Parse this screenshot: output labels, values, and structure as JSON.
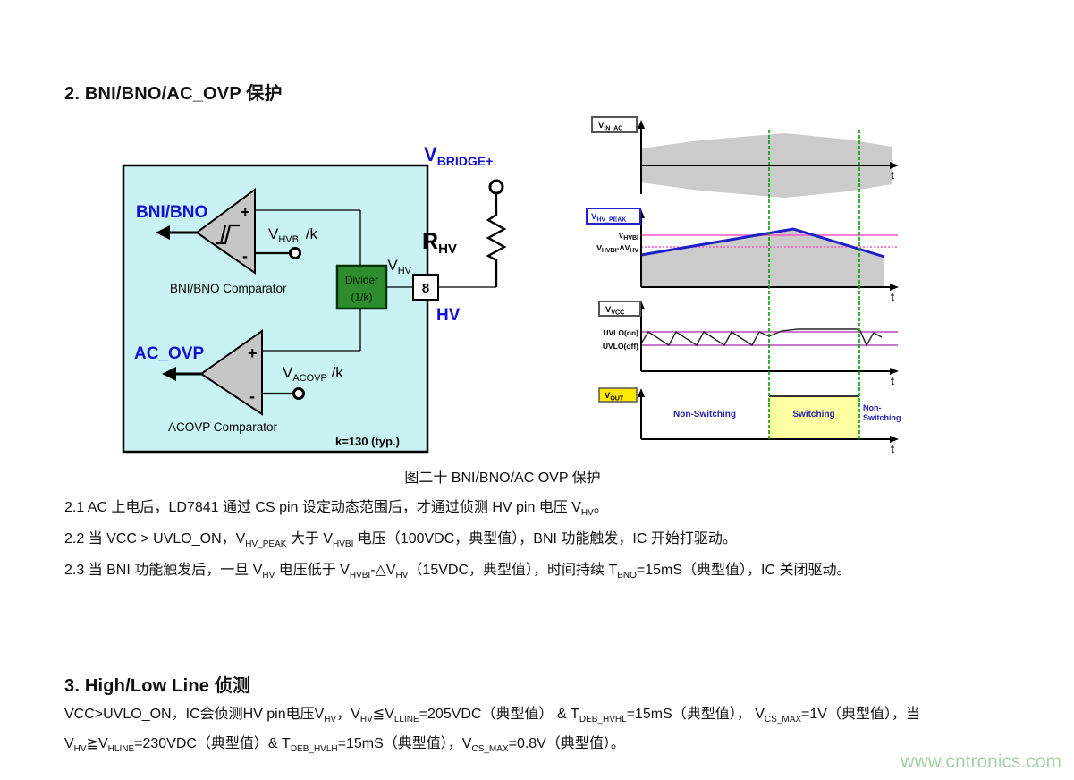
{
  "page": {
    "section2_title": "2. BNI/BNO/AC_OVP 保护",
    "caption": "图二十  BNI/BNO/AC OVP 保护",
    "section3_title": "3.  High/Low Line 侦测",
    "watermark": "www.cntronics.com"
  },
  "circuit": {
    "bni_output": "BNI/BNO",
    "bni_caption": "BNI/BNO Comparator",
    "acovp_output": "AC_OVP",
    "acovp_caption": "ACOVP Comparator",
    "plus": "+",
    "minus": "-",
    "vhvbi": {
      "base": "V",
      "sub": "HVBI",
      "post": " /k"
    },
    "vacovp": {
      "base": "V",
      "sub": "ACOVP",
      "post": " /k"
    },
    "divider_line1": "Divider",
    "divider_line2": "(1/k)",
    "vhv": {
      "base": "V",
      "sub": "HV"
    },
    "pin_number": "8",
    "pin_name": "HV",
    "vbridge": {
      "base": "V",
      "sub": "BRIDGE+"
    },
    "rhv": {
      "base": "R",
      "sub": "HV"
    },
    "k_note": "k=130 (typ.)"
  },
  "waveforms": {
    "panel1": {
      "label": {
        "base": "V",
        "sub": "IN_AC"
      },
      "t": "t"
    },
    "panel2": {
      "label": {
        "base": "V",
        "sub": "HV_PEAK"
      },
      "ref1": {
        "base": "V",
        "sub": "HVBI"
      },
      "ref2": {
        "base": "V",
        "sub": "HVBI",
        "mid": "-ΔV",
        "sub2": "HV"
      },
      "t": "t"
    },
    "panel3": {
      "label": {
        "base": "V",
        "sub": "VCC"
      },
      "uvlo_on": "UVLO(on)",
      "uvlo_off": "UVLO(off)",
      "t": "t"
    },
    "panel4": {
      "label": {
        "base": "V",
        "sub": "OUT"
      },
      "non_switching": "Non-Switching",
      "switching": "Switching",
      "non_line1": "Non-",
      "non_line2": "Switching",
      "t": "t"
    }
  },
  "paragraphs": {
    "p21": [
      [
        "2.1 AC 上电后，LD7841 通过 CS pin 设定动态范围后，才通过侦测 HV pin 电压 V",
        "n"
      ],
      [
        "HV",
        "s"
      ],
      [
        "。",
        "n"
      ]
    ],
    "p22": [
      [
        "2.2 当 VCC > UVLO_ON，V",
        "n"
      ],
      [
        "HV_PEAK",
        "s"
      ],
      [
        " 大于 V",
        "n"
      ],
      [
        "HVBI",
        "s"
      ],
      [
        " 电压（100VDC，典型值），BNI 功能触发，IC 开始打驱动。",
        "n"
      ]
    ],
    "p23": [
      [
        "2.3 当 BNI 功能触发后，一旦 V",
        "n"
      ],
      [
        "HV",
        "s"
      ],
      [
        " 电压低于 V",
        "n"
      ],
      [
        "HVBI",
        "s"
      ],
      [
        "-△V",
        "n"
      ],
      [
        "HV",
        "s"
      ],
      [
        "（15VDC，典型值），时间持续 T",
        "n"
      ],
      [
        "BNO",
        "s"
      ],
      [
        "=15mS（典型值），IC 关闭驱动。",
        "n"
      ]
    ],
    "p3": [
      [
        "VCC>UVLO_ON，IC会侦测HV pin电压V",
        "n"
      ],
      [
        "HV",
        "s"
      ],
      [
        "，V",
        "n"
      ],
      [
        "HV",
        "s"
      ],
      [
        "≦V",
        "n"
      ],
      [
        "LLINE",
        "s"
      ],
      [
        "=205VDC（典型值） & T",
        "n"
      ],
      [
        "DEB_HVHL",
        "s"
      ],
      [
        "=15mS（典型值）， V",
        "n"
      ],
      [
        "CS_MAX",
        "s"
      ],
      [
        "=1V（典型值），当V",
        "n"
      ],
      [
        "HV",
        "s"
      ],
      [
        "≧V",
        "n"
      ],
      [
        "HLINE",
        "s"
      ],
      [
        "=230VDC（典型值）& T",
        "n"
      ],
      [
        "DEB_HVLH",
        "s"
      ],
      [
        "=15mS（典型值），V",
        "n"
      ],
      [
        "CS_MAX",
        "s"
      ],
      [
        "=0.8V（典型值）。",
        "n"
      ]
    ]
  },
  "colors": {
    "ic_block_fill": "#c9f2f4",
    "divider_green": "#2e8b2e",
    "accent_blue": "#1212cc",
    "waveform_blue": "#2020c8",
    "magenta_ref": "#ff50c8",
    "uvlo_purple": "#c878c8",
    "marker_green": "#00a000",
    "switching_yellow": "#ffffa2",
    "vout_label_yellow": "#ffe800",
    "gray_fill": "#cbcbcb",
    "watermark_green": "#a9cfa9"
  }
}
